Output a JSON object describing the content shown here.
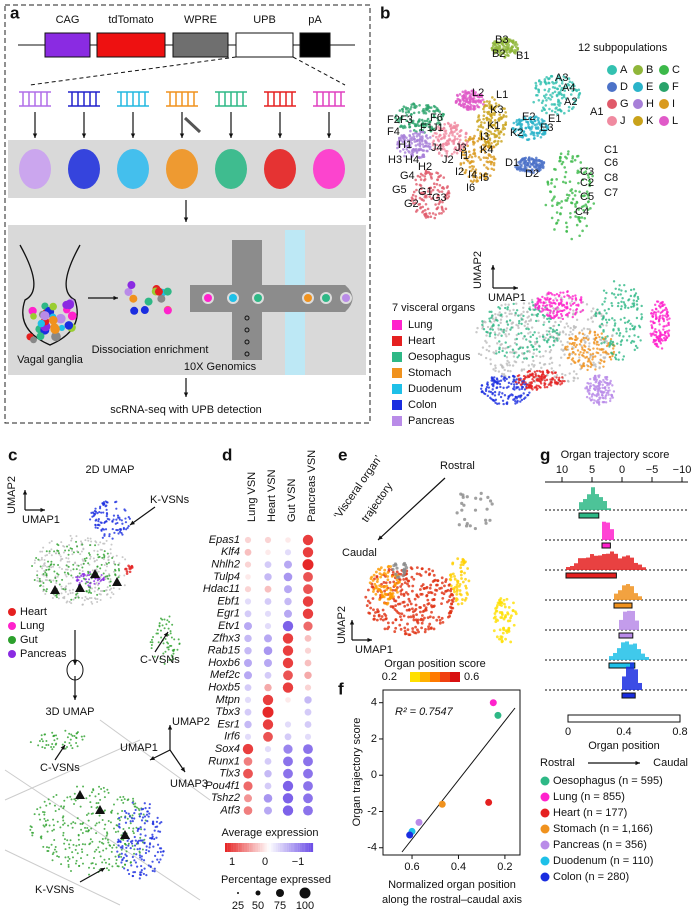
{
  "panel_labels": [
    "a",
    "b",
    "c",
    "d",
    "e",
    "f",
    "g"
  ],
  "a": {
    "construct": [
      "CAG",
      "tdTomato",
      "WPRE",
      "UPB",
      "pA"
    ],
    "steps": [
      "Vagal ganglia",
      "Dissociation enrichment",
      "10X Genomics"
    ],
    "footer": "scRNA-seq with UPB detection"
  },
  "b": {
    "legend_title": "12 subpopulations",
    "subpopulations": [
      "A",
      "B",
      "C",
      "D",
      "E",
      "F",
      "G",
      "H",
      "I",
      "J",
      "K",
      "L"
    ],
    "cluster_labels": [
      "B3",
      "B2",
      "B1",
      "A3",
      "A4",
      "A2",
      "A1",
      "E2",
      "E1",
      "E3",
      "L2",
      "L1",
      "F2",
      "F3",
      "F6",
      "F4",
      "F1",
      "J1",
      "K3",
      "K2",
      "K1",
      "K4",
      "H1",
      "H3",
      "H4",
      "J4",
      "J3",
      "I3",
      "I1",
      "H2",
      "J2",
      "I2",
      "I4",
      "I5",
      "I6",
      "G4",
      "G5",
      "G1",
      "G3",
      "G2",
      "D1",
      "D2",
      "C1",
      "C6",
      "C3",
      "C8",
      "C2",
      "C7",
      "C5",
      "C4"
    ],
    "axis_labels": [
      "UMAP2",
      "UMAP1"
    ],
    "organ_title": "7 visceral organs",
    "organs": [
      "Lung",
      "Heart",
      "Oesophagus",
      "Stomach",
      "Duodenum",
      "Colon",
      "Pancreas"
    ]
  },
  "c": {
    "title_2d": "2D UMAP",
    "title_3d": "3D UMAP",
    "axes_2d": [
      "UMAP2",
      "UMAP1"
    ],
    "axes_3d": [
      "UMAP2",
      "UMAP1",
      "UMAP3"
    ],
    "labels": [
      "K-VSNs",
      "C-VSNs",
      "C-VSNs",
      "K-VSNs"
    ],
    "legend": [
      "Heart",
      "Lung",
      "Gut",
      "Pancreas"
    ]
  },
  "d": {
    "columns": [
      "Lung VSN",
      "Heart VSN",
      "Gut VSN",
      "Pancreas VSN"
    ],
    "genes": [
      "Epas1",
      "Klf4",
      "Nhlh2",
      "Tulp4",
      "Hdac11",
      "Ebf1",
      "Egr1",
      "Etv1",
      "Zfhx3",
      "Rab15",
      "Hoxb6",
      "Mef2c",
      "Hoxb5",
      "Mtpn",
      "Tbx3",
      "Esr1",
      "Irf6",
      "Sox4",
      "Runx1",
      "Tlx3",
      "Pou4f1",
      "Tshz2",
      "Atf3"
    ],
    "expression": [
      [
        0.2,
        0.2,
        0.1,
        0.9
      ],
      [
        0.3,
        0.1,
        -0.2,
        0.9
      ],
      [
        0.2,
        -0.3,
        -0.5,
        1
      ],
      [
        0.1,
        -0.4,
        -0.6,
        0.8
      ],
      [
        0.2,
        0.3,
        -0.5,
        0.8
      ],
      [
        -0.2,
        -0.3,
        -0.4,
        0.9
      ],
      [
        -0.3,
        -0.2,
        -0.5,
        0.9
      ],
      [
        -0.5,
        -0.2,
        -0.9,
        0.7
      ],
      [
        -0.4,
        -0.5,
        0.9,
        0.3
      ],
      [
        -0.4,
        -0.6,
        0.9,
        0.2
      ],
      [
        -0.5,
        -0.5,
        0.9,
        0.3
      ],
      [
        -0.5,
        -0.3,
        0.8,
        0.4
      ],
      [
        -0.3,
        0.4,
        0.9,
        0.2
      ],
      [
        -0.2,
        0.9,
        0.1,
        -0.4
      ],
      [
        -0.3,
        1,
        0,
        -0.3
      ],
      [
        -0.4,
        0.9,
        -0.2,
        -0.3
      ],
      [
        -0.2,
        0.8,
        -0.3,
        -0.2
      ],
      [
        0.9,
        -0.2,
        -0.7,
        -0.8
      ],
      [
        0.6,
        -0.3,
        -0.8,
        -0.8
      ],
      [
        0.8,
        -0.4,
        -0.8,
        -0.8
      ],
      [
        0.7,
        -0.3,
        -0.9,
        -0.8
      ],
      [
        0.5,
        -0.6,
        -0.9,
        -0.8
      ],
      [
        0.6,
        -0.5,
        -0.9,
        -0.8
      ]
    ],
    "color_title": "Average expression",
    "color_ticks": [
      "1",
      "0",
      "−1"
    ],
    "size_title": "Percentage expressed",
    "size_ticks": [
      "25",
      "50",
      "75",
      "100"
    ]
  },
  "e": {
    "labels": [
      "Rostral",
      "‘Visceral organ’",
      "trajectory",
      "Caudal"
    ],
    "axes": [
      "UMAP2",
      "UMAP1"
    ],
    "scale_title": "Organ position score",
    "scale_ticks": [
      "0.2",
      "0.6"
    ]
  },
  "chart_data": [
    {
      "type": "scatter",
      "annotation": "R² = 0.7547",
      "xlabel": "Normalized organ position",
      "xlabel2": "along the rostral–caudal axis",
      "ylabel": "Organ trajectory score",
      "xlim": [
        0.725,
        0.135
      ],
      "ylim": [
        -4.4,
        4.7
      ],
      "xticks": [
        0.6,
        0.4,
        0.2
      ],
      "yticks": [
        -4,
        -2,
        0,
        2,
        4
      ],
      "series": [
        {
          "name": "Lung",
          "color": "#ff22cc",
          "x": [
            0.25
          ],
          "values": [
            4.0
          ]
        },
        {
          "name": "Oesophagus",
          "color": "#2eb886",
          "x": [
            0.23
          ],
          "values": [
            3.3
          ]
        },
        {
          "name": "Heart",
          "color": "#e52020",
          "x": [
            0.27
          ],
          "values": [
            -1.5
          ]
        },
        {
          "name": "Stomach",
          "color": "#f0921e",
          "x": [
            0.47
          ],
          "values": [
            -1.6
          ]
        },
        {
          "name": "Pancreas",
          "color": "#b98be8",
          "x": [
            0.57
          ],
          "values": [
            -2.6
          ]
        },
        {
          "name": "Duodenum",
          "color": "#1ec0e8",
          "x": [
            0.6
          ],
          "values": [
            -3.1
          ]
        },
        {
          "name": "Colon",
          "color": "#1a2de0",
          "x": [
            0.61
          ],
          "values": [
            -3.3
          ]
        }
      ]
    }
  ],
  "g": {
    "title": "Organ trajectory score",
    "top_ticks": [
      "10",
      "5",
      "0",
      "−5",
      "−10"
    ],
    "bottom_title": "Organ position",
    "bottom_ticks": [
      "0",
      "0.4",
      "0.8"
    ],
    "direction": [
      "Rostral",
      "Caudal"
    ],
    "legend": [
      "Oesophagus (n = 595)",
      "Lung (n = 855)",
      "Heart (n = 177)",
      "Stomach (n = 1,166)",
      "Pancreas (n = 356)",
      "Duodenum (n = 110)",
      "Colon (n = 280)"
    ]
  }
}
